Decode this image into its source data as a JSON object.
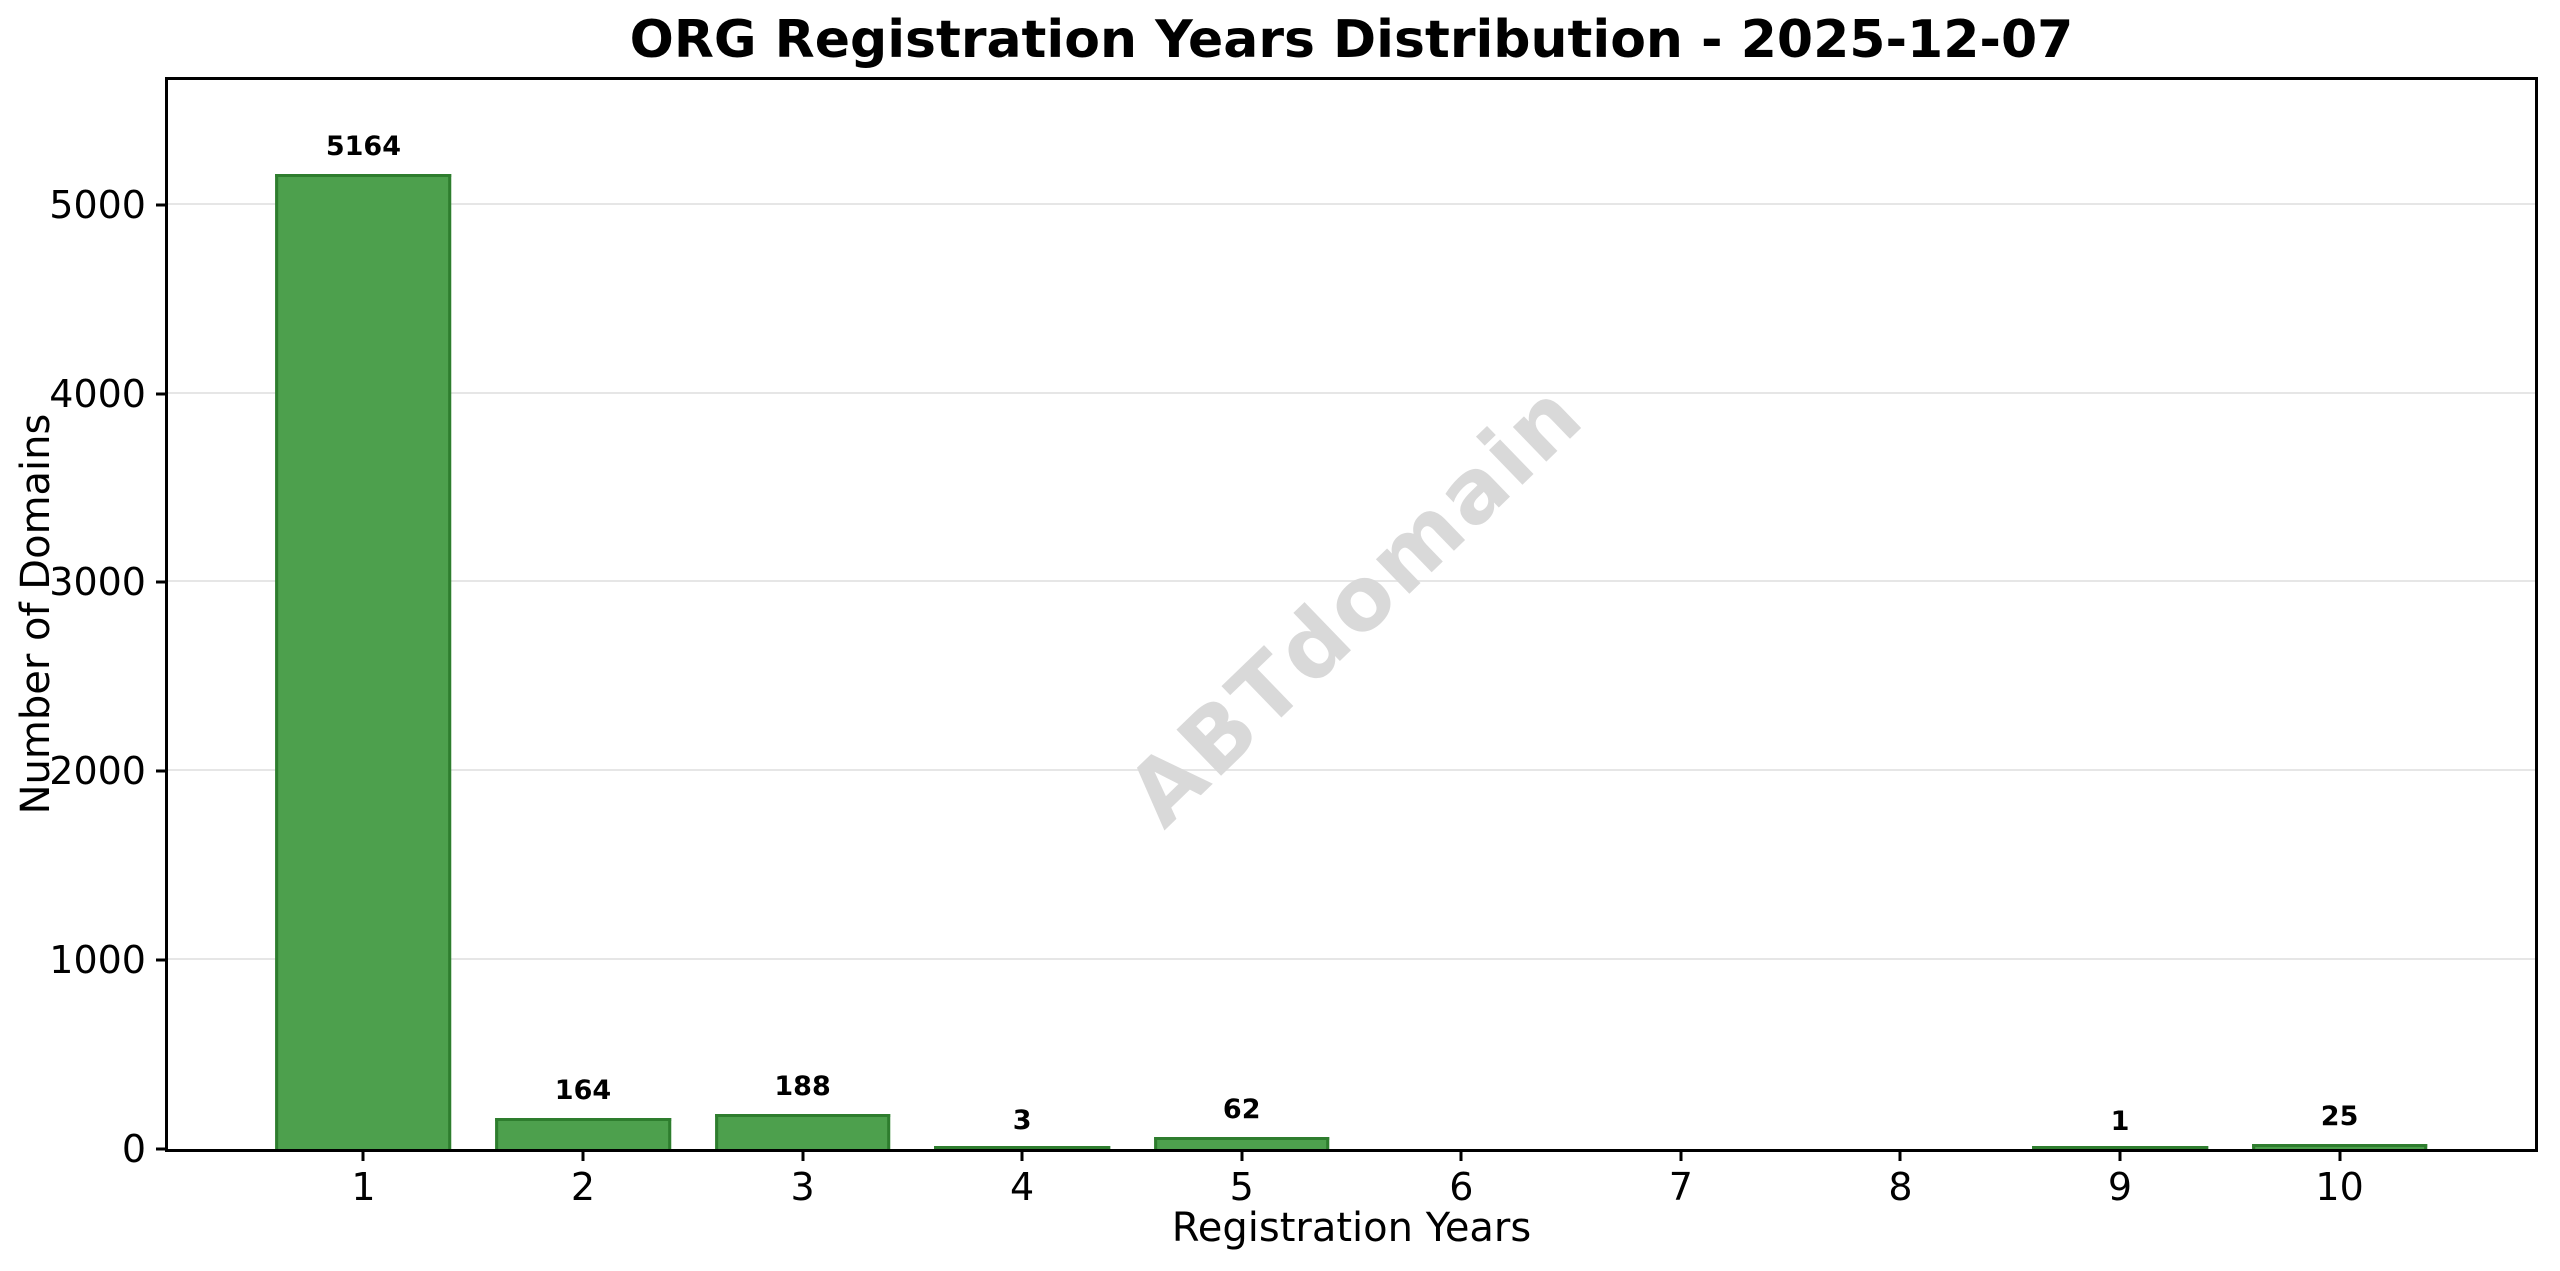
{
  "chart_data": {
    "type": "bar",
    "title": "ORG Registration Years Distribution - 2025-12-07",
    "xlabel": "Registration Years",
    "ylabel": "Number of Domains",
    "categories": [
      1,
      2,
      3,
      4,
      5,
      6,
      7,
      8,
      9,
      10
    ],
    "values": [
      5164,
      164,
      188,
      3,
      62,
      0,
      0,
      0,
      1,
      25
    ],
    "bar_labels": [
      "5164",
      "164",
      "188",
      "3",
      "62",
      "",
      "",
      "",
      "1",
      "25"
    ],
    "xlim": [
      0.11,
      10.89
    ],
    "ylim": [
      0,
      5660
    ],
    "yticks": [
      0,
      1000,
      2000,
      3000,
      4000,
      5000
    ],
    "bar_width_units": 0.8,
    "grid": "horizontal",
    "legend": "none",
    "colors": {
      "bar_fill": "#4da04d",
      "bar_edge": "#2e7d2e",
      "gridline": "#e6e6e6",
      "spine": "#000000",
      "watermark": "#d9d9d9"
    },
    "watermark": {
      "text": "ABTdomain",
      "rotation_deg": -44
    }
  }
}
